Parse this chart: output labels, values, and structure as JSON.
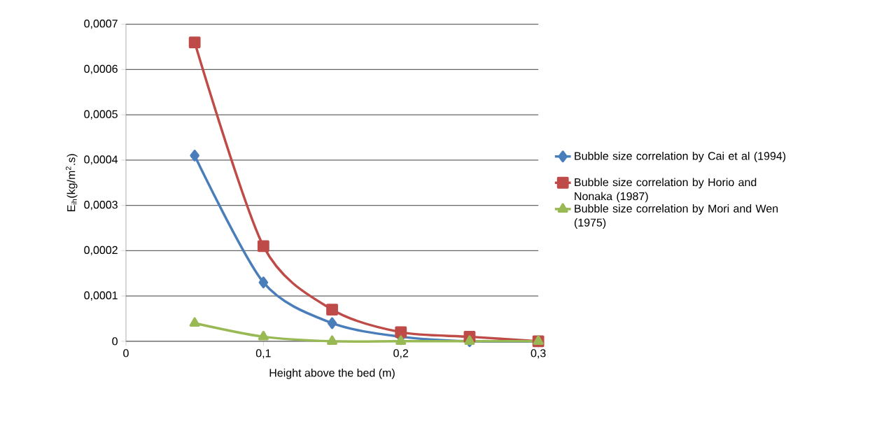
{
  "chart_data": {
    "type": "line",
    "xlabel": "Height above the bed (m)",
    "ylabel": "E$_{ih}$(kg/m$^{2}$.s)",
    "x": [
      0.05,
      0.1,
      0.15,
      0.2,
      0.25,
      0.3
    ],
    "series": [
      {
        "name": "Bubble size correlation by Cai et al (1994)",
        "color": "#4a7ebb",
        "marker": "diamond",
        "values": [
          0.00041,
          0.00013,
          4e-05,
          1e-05,
          0,
          0
        ]
      },
      {
        "name": "Bubble size correlation by Horio and Nonaka (1987)",
        "color": "#be4b48",
        "marker": "square",
        "values": [
          0.00066,
          0.00021,
          7e-05,
          2e-05,
          1e-05,
          0
        ]
      },
      {
        "name": "Bubble size correlation by Mori and Wen (1975)",
        "color": "#98b954",
        "marker": "triangle",
        "values": [
          4e-05,
          1e-05,
          0,
          0,
          0,
          0
        ]
      }
    ],
    "xlim": [
      0,
      0.3
    ],
    "xticks": [
      0,
      {
        "value": 0.1,
        "label": "0,1"
      },
      {
        "value": 0.2,
        "label": "0,2"
      },
      {
        "value": 0.3,
        "label": "0,3"
      }
    ],
    "ylim": [
      0,
      0.0007
    ],
    "yticks": [
      0,
      {
        "value": 0.0001,
        "label": "0,0001"
      },
      {
        "value": 0.0002,
        "label": "0,0002"
      },
      {
        "value": 0.0003,
        "label": "0,0003"
      },
      {
        "value": 0.0004,
        "label": "0,0004"
      },
      {
        "value": 0.0005,
        "label": "0,0005"
      },
      {
        "value": 0.0006,
        "label": "0,0006"
      },
      {
        "value": 0.0007,
        "label": "0,0007"
      }
    ],
    "grid": "y",
    "legend": "right",
    "line_style": "solid"
  }
}
